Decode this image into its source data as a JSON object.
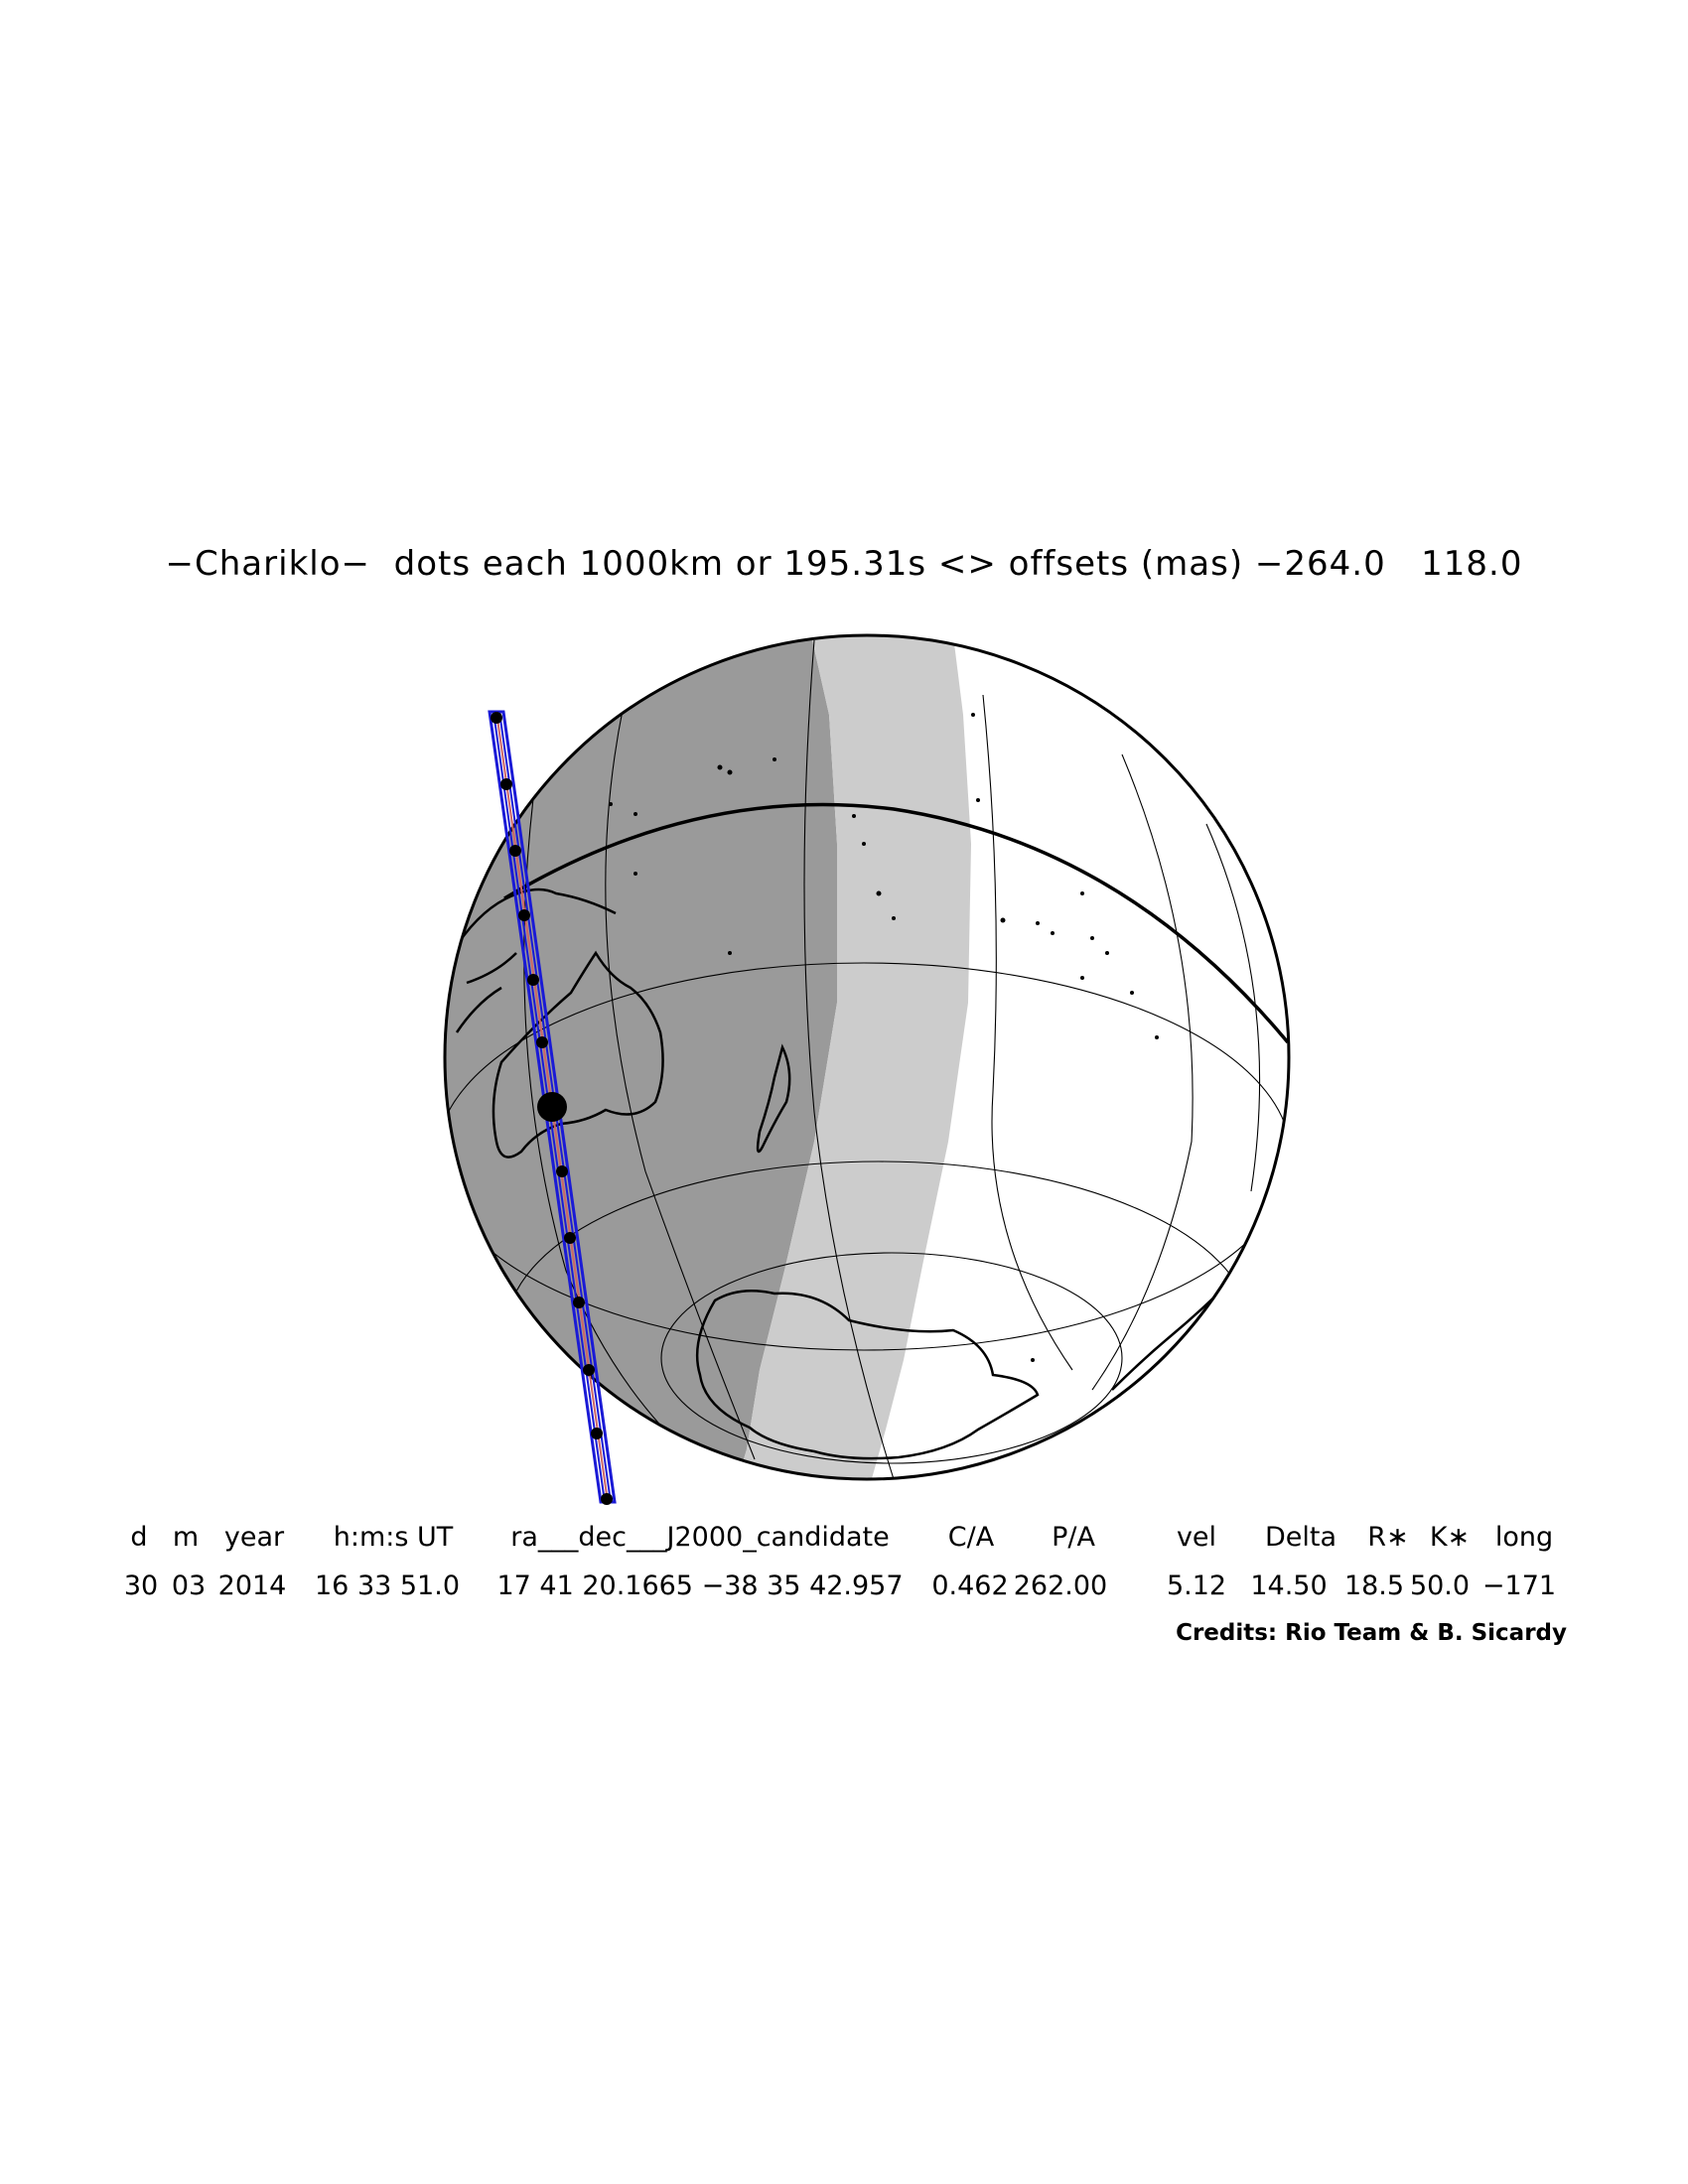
{
  "title": "−Chariklo−  dots each 1000km or 195.31s <> offsets (mas) −264.0   118.0",
  "table": {
    "headers": [
      "d",
      "m",
      "year",
      "h:m:s UT",
      "ra___dec___J2000_candidate",
      "C/A",
      "P/A",
      "vel",
      "Delta",
      "R∗",
      "K∗",
      "long"
    ],
    "values": [
      "30",
      "03",
      "2014",
      "16 33 51.0",
      "17 41 20.1665 −38 35 42.957",
      "0.462",
      "262.00",
      "5.12",
      "14.50",
      "18.5",
      "50.0",
      "−171"
    ]
  },
  "credits": "Credits: Rio Team & B. Sicardy",
  "colors": {
    "night_shade": "#9a9a9a",
    "twilight_shade": "#cccccc",
    "day_side": "#ffffff",
    "shadow_path": "#1a1ad6",
    "path_dots": "#000000"
  },
  "path": {
    "dot_count": 12,
    "closest_approach_marker": "large-dot"
  }
}
